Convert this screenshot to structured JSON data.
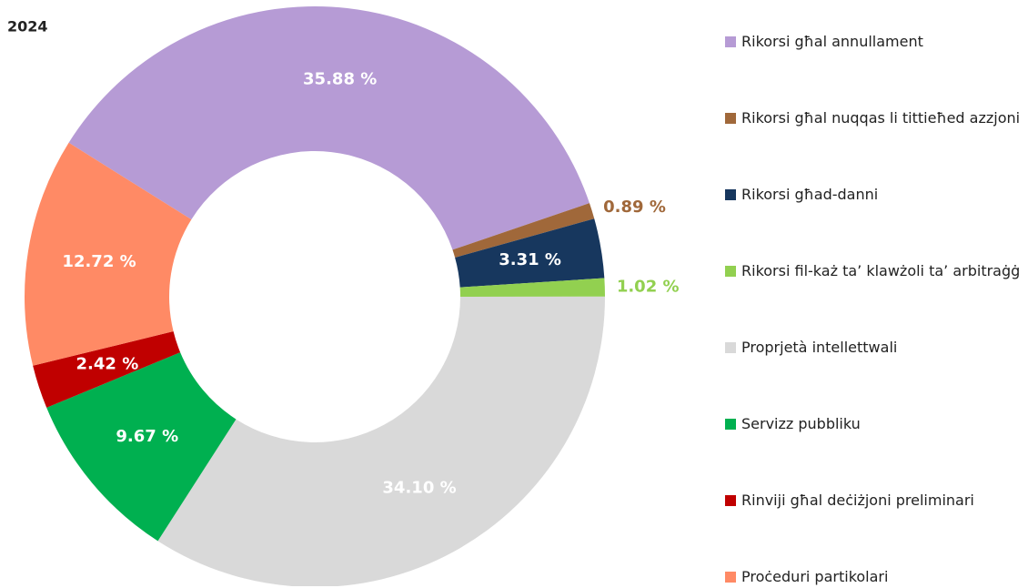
{
  "chart_data": {
    "type": "donut",
    "title": "2024",
    "categories": [
      "Rikorsi għal annullament",
      "Rikorsi għal nuqqas li tittieħed azzjoni",
      "Rikorsi għad-danni",
      "Rikorsi fil-każ ta’ klawżoli ta’ arbitraġġ",
      "Proprjetà intellettwali",
      "Servizz pubbliku",
      "Rinviji għal deċiżjoni preliminari",
      "Proċeduri partikolari"
    ],
    "values": [
      35.88,
      0.89,
      3.31,
      1.02,
      34.1,
      9.67,
      2.42,
      12.72
    ],
    "value_labels": [
      "35.88 %",
      "0.89 %",
      "3.31 %",
      "1.02 %",
      "34.10 %",
      "9.67 %",
      "2.42 %",
      "12.72 %"
    ],
    "colors": [
      "#b69bd5",
      "#a0683a",
      "#17375e",
      "#92d050",
      "#d9d9d9",
      "#00b050",
      "#c00000",
      "#ff8a65"
    ],
    "legend": "right"
  }
}
